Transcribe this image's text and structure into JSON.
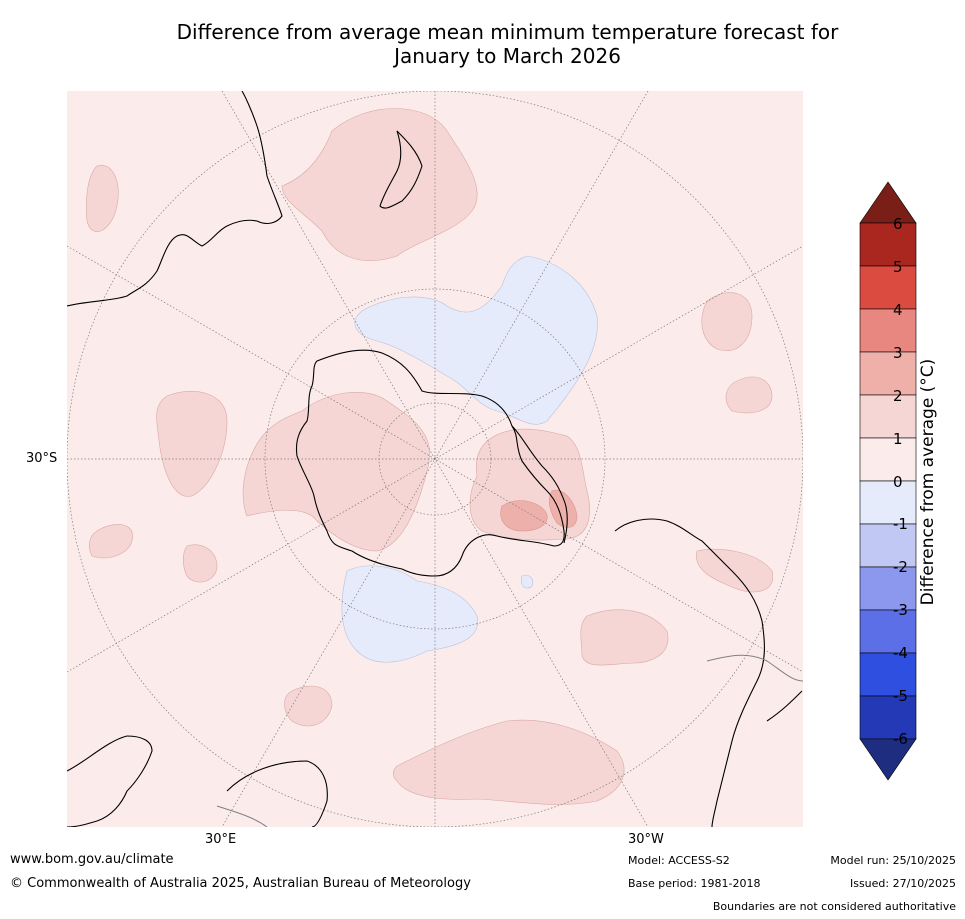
{
  "title_line1": "Difference from average mean minimum temperature forecast for",
  "title_line2": "January to March 2026",
  "map": {
    "projection": "South polar stereographic",
    "lat_labels": [
      "30°S"
    ],
    "lon_labels": [
      "30°E",
      "30°W"
    ],
    "fill_colors": {
      "background": "#fbeceb",
      "warm_1_2": "#f5d6d4",
      "warm_2_3": "#eeb0aa",
      "cool_0_m1": "#e6ebfb",
      "land_line": "#000000",
      "border_line": "#808080"
    }
  },
  "colorbar": {
    "title": "Difference from average (°C)",
    "ticks": [
      "6",
      "5",
      "4",
      "3",
      "2",
      "1",
      "0",
      "-1",
      "-2",
      "-3",
      "-4",
      "-5",
      "-6"
    ],
    "colors": [
      "#a9271f",
      "#dc4b3f",
      "#e7877f",
      "#efb0aa",
      "#f5d6d4",
      "#fbeceb",
      "#e6ebfb",
      "#c0c8f3",
      "#8b98ee",
      "#5c6fe6",
      "#2e4fe0",
      "#2439b5"
    ],
    "over_color": "#7a1e18",
    "under_color": "#1f2d80"
  },
  "footer": {
    "website": "www.bom.gov.au/climate",
    "copyright": "© Commonwealth of Australia 2025, Australian Bureau of Meteorology",
    "model": "Model: ACCESS-S2",
    "base_period": "Base period: 1981-2018",
    "model_run": "Model run: 25/10/2025",
    "issued": "Issued: 27/10/2025",
    "disclaimer": "Boundaries are not considered authoritative"
  }
}
